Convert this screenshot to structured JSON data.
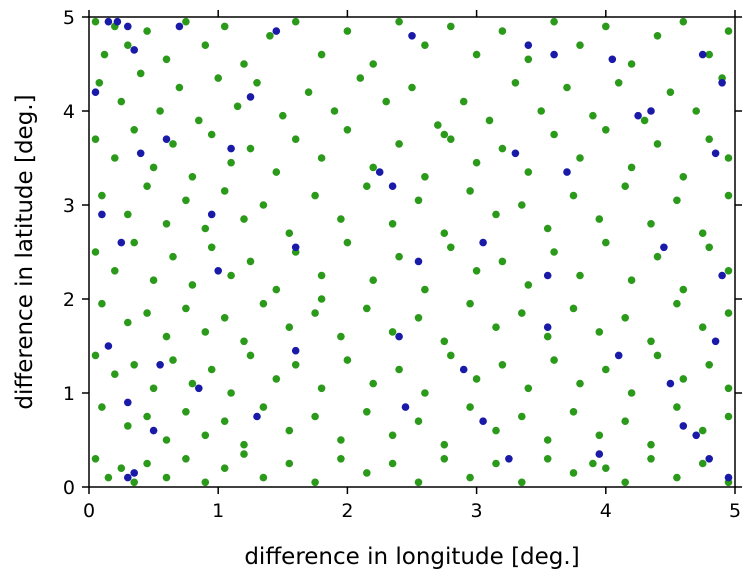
{
  "chart_data": {
    "type": "scatter",
    "xlabel": "difference in longitude [deg.]",
    "ylabel": "difference in latitude [deg.]",
    "xlim": [
      0,
      5
    ],
    "ylim": [
      0,
      5
    ],
    "xticks": [
      0,
      1,
      2,
      3,
      4,
      5
    ],
    "yticks": [
      0,
      1,
      2,
      3,
      4,
      5
    ],
    "x_tick_labels": [
      "0",
      "1",
      "2",
      "3",
      "4",
      "5"
    ],
    "y_tick_labels": [
      "0",
      "1",
      "2",
      "3",
      "4",
      "5"
    ],
    "grid": false,
    "legend": "none",
    "series": [
      {
        "color": "#2b9a1a",
        "points": [
          [
            0.05,
            4.95
          ],
          [
            0.12,
            4.6
          ],
          [
            0.2,
            4.9
          ],
          [
            0.3,
            4.7
          ],
          [
            0.45,
            4.85
          ],
          [
            0.6,
            4.55
          ],
          [
            0.75,
            4.95
          ],
          [
            0.9,
            4.7
          ],
          [
            1.05,
            4.9
          ],
          [
            1.2,
            4.5
          ],
          [
            1.4,
            4.8
          ],
          [
            1.6,
            4.95
          ],
          [
            1.8,
            4.6
          ],
          [
            2.0,
            4.85
          ],
          [
            2.2,
            4.5
          ],
          [
            2.4,
            4.95
          ],
          [
            2.6,
            4.7
          ],
          [
            2.8,
            4.9
          ],
          [
            3.0,
            4.6
          ],
          [
            3.2,
            4.85
          ],
          [
            3.4,
            4.55
          ],
          [
            3.6,
            4.95
          ],
          [
            3.8,
            4.7
          ],
          [
            4.0,
            4.9
          ],
          [
            4.2,
            4.5
          ],
          [
            4.4,
            4.8
          ],
          [
            4.6,
            4.95
          ],
          [
            4.8,
            4.6
          ],
          [
            4.95,
            4.85
          ],
          [
            0.08,
            4.3
          ],
          [
            0.25,
            4.1
          ],
          [
            0.4,
            4.4
          ],
          [
            0.55,
            4.0
          ],
          [
            0.7,
            4.25
          ],
          [
            0.85,
            3.9
          ],
          [
            1.0,
            4.35
          ],
          [
            1.15,
            4.05
          ],
          [
            1.3,
            4.3
          ],
          [
            1.5,
            3.95
          ],
          [
            1.7,
            4.2
          ],
          [
            1.9,
            4.0
          ],
          [
            2.1,
            4.35
          ],
          [
            2.3,
            4.1
          ],
          [
            2.5,
            4.25
          ],
          [
            2.7,
            3.85
          ],
          [
            2.75,
            3.75
          ],
          [
            2.9,
            4.1
          ],
          [
            3.1,
            3.9
          ],
          [
            3.3,
            4.3
          ],
          [
            3.5,
            4.0
          ],
          [
            3.7,
            4.25
          ],
          [
            3.9,
            3.95
          ],
          [
            4.1,
            4.3
          ],
          [
            4.3,
            3.9
          ],
          [
            4.5,
            4.2
          ],
          [
            4.7,
            4.0
          ],
          [
            4.9,
            4.35
          ],
          [
            0.05,
            3.7
          ],
          [
            0.2,
            3.5
          ],
          [
            0.35,
            3.8
          ],
          [
            0.5,
            3.4
          ],
          [
            0.65,
            3.65
          ],
          [
            0.8,
            3.3
          ],
          [
            0.95,
            3.75
          ],
          [
            1.1,
            3.45
          ],
          [
            1.25,
            3.6
          ],
          [
            1.45,
            3.35
          ],
          [
            1.6,
            3.7
          ],
          [
            1.8,
            3.5
          ],
          [
            2.0,
            3.8
          ],
          [
            2.2,
            3.4
          ],
          [
            2.4,
            3.65
          ],
          [
            2.6,
            3.3
          ],
          [
            2.8,
            3.7
          ],
          [
            3.0,
            3.45
          ],
          [
            3.2,
            3.6
          ],
          [
            3.4,
            3.35
          ],
          [
            3.6,
            3.75
          ],
          [
            3.8,
            3.5
          ],
          [
            4.0,
            3.8
          ],
          [
            4.2,
            3.4
          ],
          [
            4.4,
            3.65
          ],
          [
            4.6,
            3.3
          ],
          [
            4.8,
            3.7
          ],
          [
            4.95,
            3.5
          ],
          [
            0.1,
            3.1
          ],
          [
            0.3,
            2.9
          ],
          [
            0.45,
            3.2
          ],
          [
            0.6,
            2.8
          ],
          [
            0.75,
            3.05
          ],
          [
            0.9,
            2.75
          ],
          [
            1.05,
            3.15
          ],
          [
            1.2,
            2.85
          ],
          [
            1.35,
            3.0
          ],
          [
            1.55,
            2.7
          ],
          [
            1.75,
            3.1
          ],
          [
            1.95,
            2.85
          ],
          [
            2.15,
            3.2
          ],
          [
            2.35,
            2.8
          ],
          [
            2.55,
            3.05
          ],
          [
            2.75,
            2.7
          ],
          [
            2.95,
            3.15
          ],
          [
            3.15,
            2.9
          ],
          [
            3.35,
            3.0
          ],
          [
            3.55,
            2.75
          ],
          [
            3.75,
            3.1
          ],
          [
            3.95,
            2.85
          ],
          [
            4.15,
            3.2
          ],
          [
            4.35,
            2.8
          ],
          [
            4.55,
            3.05
          ],
          [
            4.75,
            2.7
          ],
          [
            4.95,
            3.1
          ],
          [
            0.05,
            2.5
          ],
          [
            0.2,
            2.3
          ],
          [
            0.35,
            2.6
          ],
          [
            0.5,
            2.2
          ],
          [
            0.65,
            2.45
          ],
          [
            0.8,
            2.15
          ],
          [
            0.95,
            2.55
          ],
          [
            1.1,
            2.25
          ],
          [
            1.25,
            2.4
          ],
          [
            1.45,
            2.1
          ],
          [
            1.6,
            2.5
          ],
          [
            1.8,
            2.25
          ],
          [
            2.0,
            2.6
          ],
          [
            2.2,
            2.2
          ],
          [
            2.4,
            2.45
          ],
          [
            2.6,
            2.1
          ],
          [
            2.8,
            2.55
          ],
          [
            3.0,
            2.3
          ],
          [
            3.2,
            2.4
          ],
          [
            3.4,
            2.15
          ],
          [
            3.6,
            2.5
          ],
          [
            3.8,
            2.25
          ],
          [
            4.0,
            2.6
          ],
          [
            4.2,
            2.2
          ],
          [
            4.4,
            2.45
          ],
          [
            4.6,
            2.1
          ],
          [
            4.8,
            2.55
          ],
          [
            4.95,
            2.3
          ],
          [
            0.1,
            1.95
          ],
          [
            0.3,
            1.75
          ],
          [
            0.45,
            1.85
          ],
          [
            0.6,
            1.6
          ],
          [
            0.75,
            1.9
          ],
          [
            0.9,
            1.65
          ],
          [
            1.05,
            1.8
          ],
          [
            1.2,
            1.55
          ],
          [
            1.35,
            1.95
          ],
          [
            1.55,
            1.7
          ],
          [
            1.75,
            1.85
          ],
          [
            1.8,
            2.0
          ],
          [
            1.95,
            1.6
          ],
          [
            2.15,
            1.9
          ],
          [
            2.35,
            1.65
          ],
          [
            2.55,
            1.8
          ],
          [
            2.75,
            1.55
          ],
          [
            2.95,
            1.95
          ],
          [
            3.15,
            1.7
          ],
          [
            3.35,
            1.85
          ],
          [
            3.55,
            1.6
          ],
          [
            3.75,
            1.9
          ],
          [
            3.95,
            1.65
          ],
          [
            4.15,
            1.8
          ],
          [
            4.35,
            1.55
          ],
          [
            4.55,
            1.95
          ],
          [
            4.75,
            1.7
          ],
          [
            4.95,
            1.85
          ],
          [
            0.05,
            1.4
          ],
          [
            0.2,
            1.2
          ],
          [
            0.35,
            1.3
          ],
          [
            0.5,
            1.05
          ],
          [
            0.65,
            1.35
          ],
          [
            0.8,
            1.1
          ],
          [
            0.95,
            1.25
          ],
          [
            1.1,
            1.0
          ],
          [
            1.25,
            1.4
          ],
          [
            1.45,
            1.15
          ],
          [
            1.6,
            1.3
          ],
          [
            1.8,
            1.05
          ],
          [
            2.0,
            1.35
          ],
          [
            2.2,
            1.1
          ],
          [
            2.4,
            1.25
          ],
          [
            2.6,
            1.0
          ],
          [
            2.8,
            1.4
          ],
          [
            3.0,
            1.15
          ],
          [
            3.2,
            1.3
          ],
          [
            3.4,
            1.05
          ],
          [
            3.6,
            1.35
          ],
          [
            3.8,
            1.1
          ],
          [
            4.0,
            1.25
          ],
          [
            4.2,
            1.0
          ],
          [
            4.4,
            1.4
          ],
          [
            4.6,
            1.15
          ],
          [
            4.8,
            1.3
          ],
          [
            4.95,
            1.05
          ],
          [
            0.1,
            0.85
          ],
          [
            0.3,
            0.65
          ],
          [
            0.45,
            0.75
          ],
          [
            0.6,
            0.5
          ],
          [
            0.75,
            0.8
          ],
          [
            0.9,
            0.55
          ],
          [
            1.05,
            0.7
          ],
          [
            1.2,
            0.45
          ],
          [
            1.35,
            0.85
          ],
          [
            1.55,
            0.6
          ],
          [
            1.75,
            0.75
          ],
          [
            1.95,
            0.5
          ],
          [
            2.15,
            0.8
          ],
          [
            2.35,
            0.55
          ],
          [
            2.55,
            0.7
          ],
          [
            2.75,
            0.45
          ],
          [
            2.95,
            0.85
          ],
          [
            3.15,
            0.6
          ],
          [
            3.35,
            0.75
          ],
          [
            3.55,
            0.5
          ],
          [
            3.75,
            0.8
          ],
          [
            3.95,
            0.55
          ],
          [
            4.15,
            0.7
          ],
          [
            4.35,
            0.45
          ],
          [
            4.55,
            0.85
          ],
          [
            4.75,
            0.6
          ],
          [
            4.95,
            0.75
          ],
          [
            0.05,
            0.3
          ],
          [
            0.15,
            0.1
          ],
          [
            0.25,
            0.2
          ],
          [
            0.35,
            0.05
          ],
          [
            0.45,
            0.25
          ],
          [
            0.6,
            0.1
          ],
          [
            0.75,
            0.3
          ],
          [
            0.9,
            0.05
          ],
          [
            1.05,
            0.2
          ],
          [
            1.2,
            0.35
          ],
          [
            1.35,
            0.1
          ],
          [
            1.55,
            0.25
          ],
          [
            1.75,
            0.05
          ],
          [
            1.95,
            0.3
          ],
          [
            2.15,
            0.15
          ],
          [
            2.35,
            0.25
          ],
          [
            2.55,
            0.05
          ],
          [
            2.75,
            0.3
          ],
          [
            2.95,
            0.1
          ],
          [
            3.15,
            0.25
          ],
          [
            3.35,
            0.05
          ],
          [
            3.55,
            0.3
          ],
          [
            3.75,
            0.15
          ],
          [
            3.9,
            0.25
          ],
          [
            4.0,
            0.2
          ],
          [
            4.15,
            0.05
          ],
          [
            4.35,
            0.3
          ],
          [
            4.55,
            0.1
          ],
          [
            4.75,
            0.25
          ],
          [
            4.95,
            0.05
          ]
        ]
      },
      {
        "color": "#1a1aa8",
        "points": [
          [
            0.05,
            4.2
          ],
          [
            0.15,
            4.95
          ],
          [
            0.22,
            4.95
          ],
          [
            0.3,
            4.9
          ],
          [
            0.35,
            4.65
          ],
          [
            0.7,
            4.9
          ],
          [
            1.25,
            4.15
          ],
          [
            1.45,
            4.85
          ],
          [
            2.5,
            4.8
          ],
          [
            3.4,
            4.7
          ],
          [
            3.6,
            4.6
          ],
          [
            4.05,
            4.55
          ],
          [
            4.35,
            4.0
          ],
          [
            4.75,
            4.6
          ],
          [
            4.9,
            4.3
          ],
          [
            0.4,
            3.55
          ],
          [
            0.6,
            3.7
          ],
          [
            1.1,
            3.6
          ],
          [
            2.25,
            3.35
          ],
          [
            2.35,
            3.2
          ],
          [
            3.3,
            3.55
          ],
          [
            3.7,
            3.35
          ],
          [
            4.25,
            3.95
          ],
          [
            4.85,
            3.55
          ],
          [
            0.1,
            2.9
          ],
          [
            0.25,
            2.6
          ],
          [
            0.95,
            2.9
          ],
          [
            1.0,
            2.3
          ],
          [
            1.6,
            2.55
          ],
          [
            2.55,
            2.4
          ],
          [
            3.05,
            2.6
          ],
          [
            3.55,
            2.25
          ],
          [
            4.45,
            2.55
          ],
          [
            4.9,
            2.25
          ],
          [
            0.15,
            1.5
          ],
          [
            0.55,
            1.3
          ],
          [
            0.85,
            1.05
          ],
          [
            1.6,
            1.45
          ],
          [
            2.4,
            1.6
          ],
          [
            2.9,
            1.25
          ],
          [
            3.55,
            1.7
          ],
          [
            4.1,
            1.4
          ],
          [
            4.5,
            1.1
          ],
          [
            4.85,
            1.55
          ],
          [
            0.3,
            0.9
          ],
          [
            0.5,
            0.6
          ],
          [
            0.35,
            0.15
          ],
          [
            0.3,
            0.1
          ],
          [
            1.3,
            0.75
          ],
          [
            2.45,
            0.85
          ],
          [
            3.05,
            0.7
          ],
          [
            3.25,
            0.3
          ],
          [
            3.95,
            0.35
          ],
          [
            4.6,
            0.65
          ],
          [
            4.7,
            0.55
          ],
          [
            4.8,
            0.3
          ],
          [
            4.95,
            0.1
          ]
        ]
      }
    ]
  }
}
